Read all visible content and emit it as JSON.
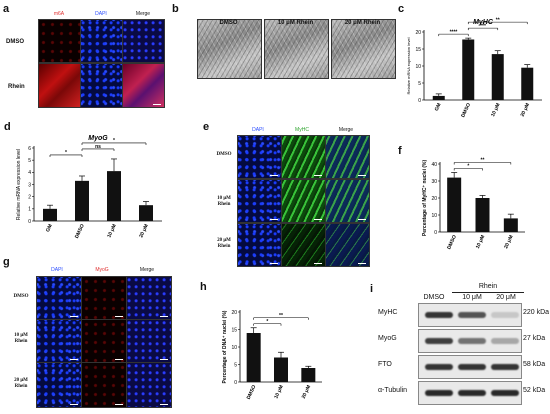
{
  "panels": {
    "a": {
      "label": "a",
      "headers": [
        "m6A",
        "DAPI",
        "Merge"
      ],
      "header_colors": [
        "#e03030",
        "#2a4cff",
        "#111111"
      ],
      "rows": [
        "DMSO",
        "Rhein"
      ]
    },
    "b": {
      "label": "b",
      "headers": [
        "DMSO",
        "10 μM Rhein",
        "20 μM Rhein"
      ]
    },
    "e": {
      "label": "e",
      "headers": [
        "DAPI",
        "MyHC",
        "Merge"
      ],
      "header_colors": [
        "#2a4cff",
        "#2ea42e",
        "#111111"
      ],
      "rows": [
        "DMSO",
        "10 μM\nRhein",
        "20 μM\nRhein"
      ]
    },
    "g": {
      "label": "g",
      "headers": [
        "DAPI",
        "MyoG",
        "Merge"
      ],
      "header_colors": [
        "#2a4cff",
        "#e03030",
        "#111111"
      ],
      "rows": [
        "DMSO",
        "10 μM\nRhein",
        "20 μM\nRhein"
      ]
    },
    "i": {
      "label": "i",
      "group_label": "Rhein",
      "lanes": [
        "DMSO",
        "10 μM",
        "20 μM"
      ],
      "bands": [
        {
          "name": "MyHC",
          "size": "220 kDa",
          "intensity": [
            0.85,
            0.7,
            0.15
          ]
        },
        {
          "name": "MyoG",
          "size": "27 kDa",
          "intensity": [
            0.8,
            0.55,
            0.3
          ]
        },
        {
          "name": "FTO",
          "size": "58 kDa",
          "intensity": [
            0.85,
            0.85,
            0.85
          ]
        },
        {
          "name": "α-Tubulin",
          "size": "52 kDa",
          "intensity": [
            0.9,
            0.9,
            0.9
          ]
        }
      ]
    }
  },
  "chart_data": [
    {
      "id": "c",
      "label": "c",
      "type": "bar",
      "title": "MyHC",
      "ylabel": "Relative mRNA expression level",
      "categories": [
        "GM",
        "DMSO",
        "10 μM",
        "20 μM"
      ],
      "values": [
        1.2,
        17.8,
        13.5,
        9.5
      ],
      "errors": [
        0.6,
        0.4,
        1.0,
        0.9
      ],
      "ylim": [
        0,
        20
      ],
      "yticks": [
        0,
        5,
        10,
        15,
        20
      ],
      "significance": [
        {
          "from": 0,
          "to": 1,
          "text": "****"
        },
        {
          "from": 1,
          "to": 2,
          "text": "***"
        },
        {
          "from": 1,
          "to": 3,
          "text": "**"
        }
      ]
    },
    {
      "id": "d",
      "label": "d",
      "type": "bar",
      "title": "MyoG",
      "ylabel": "Relative mRNA expression level",
      "categories": [
        "GM",
        "DMSO",
        "10 μM",
        "20 μM"
      ],
      "values": [
        1.0,
        3.3,
        4.1,
        1.3
      ],
      "errors": [
        0.3,
        0.4,
        1.0,
        0.3
      ],
      "ylim": [
        0,
        6
      ],
      "yticks": [
        0,
        1,
        2,
        3,
        4,
        5,
        6
      ],
      "significance": [
        {
          "from": 0,
          "to": 1,
          "text": "*"
        },
        {
          "from": 1,
          "to": 2,
          "text": "ns"
        },
        {
          "from": 1,
          "to": 3,
          "text": "*"
        }
      ]
    },
    {
      "id": "f",
      "label": "f",
      "type": "bar",
      "title": "",
      "ylabel": "Percentage of MyHC⁺ nuclei (%)",
      "categories": [
        "DMSO",
        "10 μM",
        "20 μM"
      ],
      "values": [
        32,
        20,
        8
      ],
      "errors": [
        3,
        1.5,
        2.5
      ],
      "ylim": [
        0,
        40
      ],
      "yticks": [
        0,
        10,
        20,
        30,
        40
      ],
      "significance": [
        {
          "from": 0,
          "to": 1,
          "text": "*"
        },
        {
          "from": 0,
          "to": 2,
          "text": "**"
        }
      ]
    },
    {
      "id": "h",
      "label": "h",
      "type": "bar",
      "title": "",
      "ylabel": "Percentage of DNA⁺ nuclei (%)",
      "categories": [
        "DMSO",
        "10 μM",
        "20 μM"
      ],
      "values": [
        14,
        7,
        4
      ],
      "errors": [
        1.5,
        1.5,
        0.5
      ],
      "ylim": [
        0,
        20
      ],
      "yticks": [
        0,
        5,
        10,
        15,
        20
      ],
      "significance": [
        {
          "from": 0,
          "to": 1,
          "text": "*"
        },
        {
          "from": 0,
          "to": 2,
          "text": "**"
        }
      ]
    }
  ]
}
